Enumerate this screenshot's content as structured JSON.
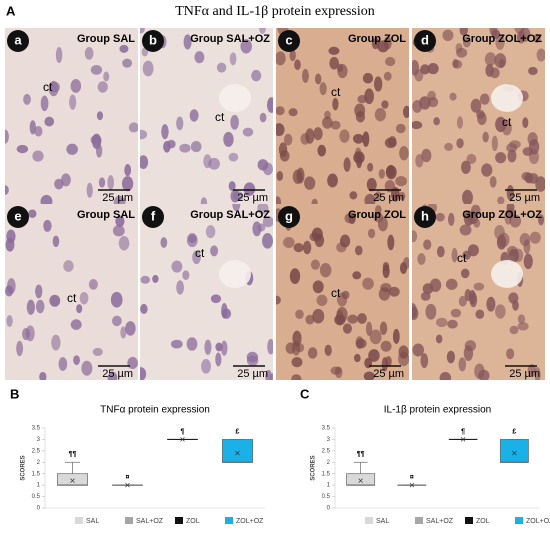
{
  "figure": {
    "label": "A",
    "title": "TNFα and IL-1β protein expression",
    "panels": [
      {
        "letter": "a",
        "group": "Group SAL",
        "tissue": "ct",
        "scale": "25 µm"
      },
      {
        "letter": "b",
        "group": "Group SAL+OZ",
        "tissue": "ct",
        "scale": "25 µm"
      },
      {
        "letter": "c",
        "group": "Group ZOL",
        "tissue": "ct",
        "scale": "25 µm"
      },
      {
        "letter": "d",
        "group": "Group ZOL+OZ",
        "tissue": "ct",
        "scale": "25 µm"
      },
      {
        "letter": "e",
        "group": "Group SAL",
        "tissue": "ct",
        "scale": "25 µm"
      },
      {
        "letter": "f",
        "group": "Group SAL+OZ",
        "tissue": "ct",
        "scale": "25 µm"
      },
      {
        "letter": "g",
        "group": "Group ZOL",
        "tissue": "ct",
        "scale": "25 µm"
      },
      {
        "letter": "h",
        "group": "Group ZOL+OZ",
        "tissue": "ct",
        "scale": "25 µm"
      }
    ]
  },
  "chart_data": [
    {
      "type": "box",
      "label": "B",
      "title": "TNFα protein expression",
      "y_label": "SCORES",
      "ylim": [
        0,
        3.5
      ],
      "yticks": [
        0,
        0.5,
        1,
        1.5,
        2,
        2.5,
        3,
        3.5
      ],
      "series": [
        {
          "name": "SAL",
          "color": "#d9d9d9",
          "min": 1,
          "q1": 1,
          "median": 1,
          "q3": 1.5,
          "max": 2,
          "mean": 1.2,
          "annotation": "¶¶"
        },
        {
          "name": "SAL+OZ",
          "color": "#a6a6a6",
          "min": 1,
          "q1": 1,
          "median": 1,
          "q3": 1,
          "max": 1,
          "mean": 1,
          "annotation": "¤"
        },
        {
          "name": "ZOL",
          "color": "#111111",
          "min": 3,
          "q1": 3,
          "median": 3,
          "q3": 3,
          "max": 3,
          "mean": 3,
          "annotation": "¶"
        },
        {
          "name": "ZOL+OZ",
          "color": "#1ab0e8",
          "min": 2,
          "q1": 2,
          "median": 2,
          "q3": 3,
          "max": 3,
          "mean": 2.4,
          "annotation": "£"
        }
      ]
    },
    {
      "type": "box",
      "label": "C",
      "title": "IL-1β protein expression",
      "y_label": "SCORES",
      "ylim": [
        0,
        3.5
      ],
      "yticks": [
        0,
        0.5,
        1,
        1.5,
        2,
        2.5,
        3,
        3.5
      ],
      "series": [
        {
          "name": "SAL",
          "color": "#d9d9d9",
          "min": 1,
          "q1": 1,
          "median": 1,
          "q3": 1.5,
          "max": 2,
          "mean": 1.2,
          "annotation": "¶¶"
        },
        {
          "name": "SAL+OZ",
          "color": "#a6a6a6",
          "min": 1,
          "q1": 1,
          "median": 1,
          "q3": 1,
          "max": 1,
          "mean": 1,
          "annotation": "¤"
        },
        {
          "name": "ZOL",
          "color": "#111111",
          "min": 3,
          "q1": 3,
          "median": 3,
          "q3": 3,
          "max": 3,
          "mean": 3,
          "annotation": "¶"
        },
        {
          "name": "ZOL+OZ",
          "color": "#1ab0e8",
          "min": 2,
          "q1": 2,
          "median": 2,
          "q3": 3,
          "max": 3,
          "mean": 2.4,
          "annotation": "£"
        }
      ]
    }
  ]
}
